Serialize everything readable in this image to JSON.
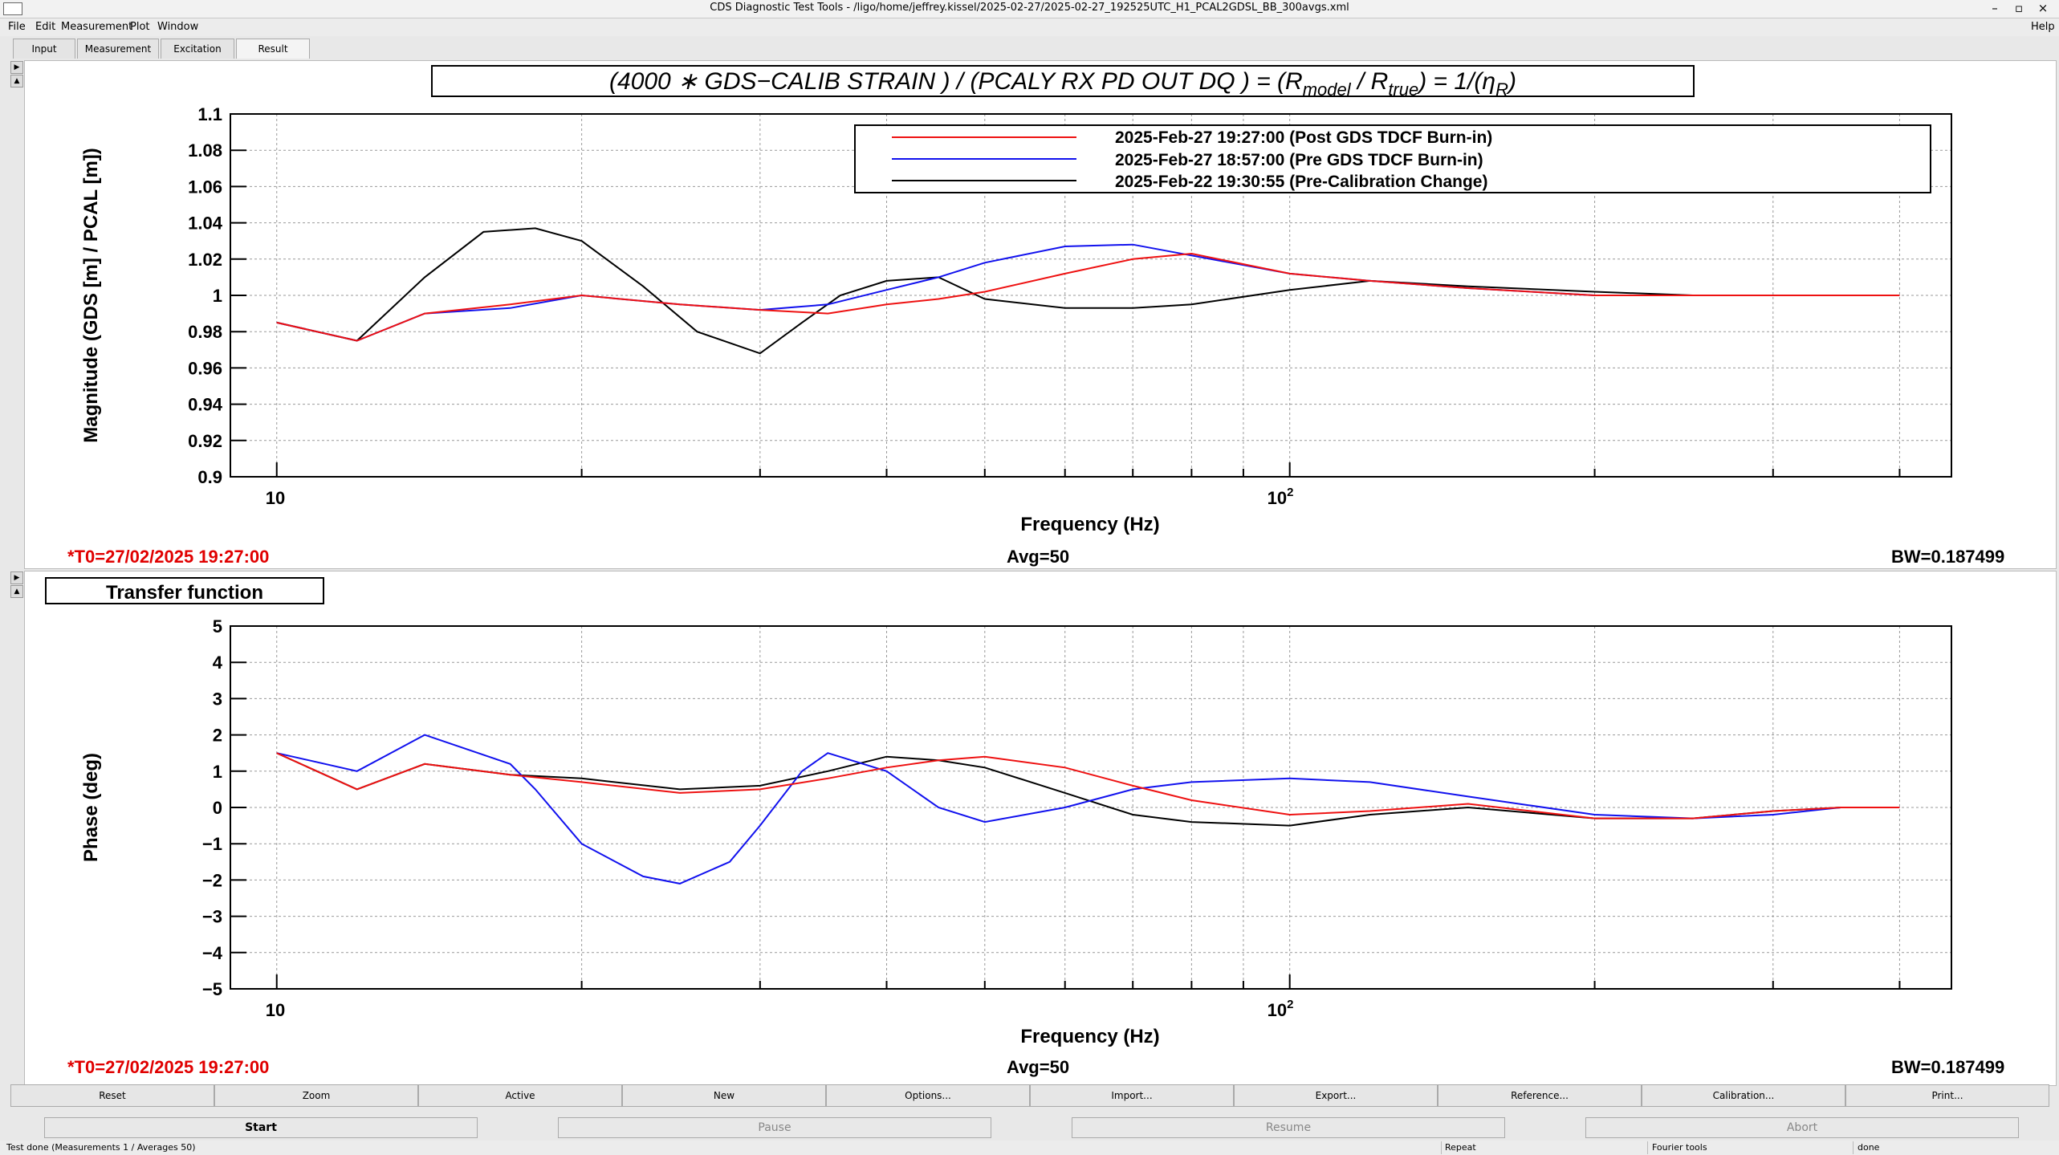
{
  "window": {
    "title": "CDS Diagnostic Test Tools - /ligo/home/jeffrey.kissel/2025-02-27/2025-02-27_192525UTC_H1_PCAL2GDSL_BB_300avgs.xml",
    "buttons": [
      "–",
      "▫",
      "×"
    ]
  },
  "menu": {
    "items": [
      "File",
      "Edit",
      "Measurement",
      "Plot",
      "Window"
    ],
    "help": "Help"
  },
  "tabs": [
    "Input",
    "Measurement",
    "Excitation",
    "Result"
  ],
  "colors": {
    "red": "#ee1111",
    "blue": "#1111ee",
    "black": "#000000"
  },
  "top_plot": {
    "title_plain": "(4000 ∗ GDS−CALIB   STRAIN   )   /   (PCALY   RX   PD   OUT   DQ   ) = (R",
    "title_sub1": "model",
    "title_mid": "   /   R",
    "title_sub2": "true",
    "title_end": ") = 1/(η",
    "title_sub3": "R",
    "title_close": ")",
    "ylabel": "Magnitude (GDS [m] / PCAL [m])",
    "xlabel": "Frequency (Hz)",
    "xtick_10": "10",
    "xtick_100_base": "10",
    "xtick_100_exp": "2",
    "legend": [
      {
        "label": "2025-Feb-27 19:27:00 (Post GDS TDCF Burn-in)",
        "color": "#ee1111"
      },
      {
        "label": "2025-Feb-27 18:57:00 (Pre GDS TDCF Burn-in)",
        "color": "#1111ee"
      },
      {
        "label": "2025-Feb-22 19:30:55 (Pre-Calibration Change)",
        "color": "#000000"
      }
    ],
    "t0": "*T0=27/02/2025 19:27:00",
    "avg": "Avg=50",
    "bw": "BW=0.187499"
  },
  "bottom_plot": {
    "label": "Transfer function",
    "ylabel": "Phase (deg)",
    "xlabel": "Frequency (Hz)",
    "xtick_10": "10",
    "xtick_100_base": "10",
    "xtick_100_exp": "2",
    "t0": "*T0=27/02/2025 19:27:00",
    "avg": "Avg=50",
    "bw": "BW=0.187499"
  },
  "chart_data": [
    {
      "type": "line",
      "title": "(4000 ∗ GDS−CALIB STRAIN) / (PCALY RX PD OUT DQ) = (R_model / R_true) = 1/(η_R)",
      "xlabel": "Frequency (Hz)",
      "ylabel": "Magnitude (GDS [m] / PCAL [m])",
      "xscale": "log",
      "xlim": [
        9,
        450
      ],
      "ylim": [
        0.9,
        1.1
      ],
      "yticks": [
        "0.9",
        "0.92",
        "0.94",
        "0.96",
        "0.98",
        "1",
        "1.02",
        "1.04",
        "1.06",
        "1.08",
        "1.1"
      ],
      "grid": true,
      "legend_position": "top-right",
      "series": [
        {
          "name": "2025-Feb-27 19:27:00 (Post GDS TDCF Burn-in)",
          "color": "#ee1111",
          "x": [
            10,
            12,
            14,
            17,
            20,
            25,
            30,
            35,
            40,
            45,
            50,
            60,
            70,
            80,
            100,
            120,
            150,
            200,
            250,
            300,
            350,
            400
          ],
          "y": [
            0.985,
            0.975,
            0.99,
            0.995,
            1.0,
            0.995,
            0.992,
            0.99,
            0.995,
            0.998,
            1.002,
            1.012,
            1.02,
            1.023,
            1.012,
            1.008,
            1.004,
            1.0,
            1.0,
            1.0,
            1.0,
            1.0
          ]
        },
        {
          "name": "2025-Feb-27 18:57:00 (Pre GDS TDCF Burn-in)",
          "color": "#1111ee",
          "x": [
            10,
            12,
            14,
            17,
            20,
            25,
            30,
            35,
            40,
            45,
            50,
            60,
            70,
            80,
            100,
            120,
            150,
            200,
            250,
            300,
            350,
            400
          ],
          "y": [
            0.985,
            0.975,
            0.99,
            0.993,
            1.0,
            0.995,
            0.992,
            0.995,
            1.003,
            1.01,
            1.018,
            1.027,
            1.028,
            1.022,
            1.012,
            1.008,
            1.004,
            1.0,
            1.0,
            1.0,
            1.0,
            1.0
          ]
        },
        {
          "name": "2025-Feb-22 19:30:55 (Pre-Calibration Change)",
          "color": "#000000",
          "x": [
            10,
            12,
            14,
            16,
            18,
            20,
            23,
            26,
            30,
            33,
            36,
            40,
            45,
            50,
            60,
            70,
            80,
            100,
            120,
            150,
            200,
            250,
            300,
            350,
            400
          ],
          "y": [
            0.985,
            0.975,
            1.01,
            1.035,
            1.037,
            1.03,
            1.005,
            0.98,
            0.968,
            0.985,
            1.0,
            1.008,
            1.01,
            0.998,
            0.993,
            0.993,
            0.995,
            1.003,
            1.008,
            1.005,
            1.002,
            1.0,
            1.0,
            1.0,
            1.0
          ]
        }
      ]
    },
    {
      "type": "line",
      "title": "Transfer function",
      "xlabel": "Frequency (Hz)",
      "ylabel": "Phase (deg)",
      "xscale": "log",
      "xlim": [
        9,
        450
      ],
      "ylim": [
        -5,
        5
      ],
      "yticks": [
        "−5",
        "−4",
        "−3",
        "−2",
        "−1",
        "0",
        "1",
        "2",
        "3",
        "4",
        "5"
      ],
      "grid": true,
      "series": [
        {
          "name": "2025-Feb-27 19:27:00 (Post GDS TDCF Burn-in)",
          "color": "#ee1111",
          "x": [
            10,
            12,
            14,
            17,
            20,
            25,
            30,
            35,
            40,
            45,
            50,
            60,
            70,
            80,
            100,
            120,
            150,
            200,
            250,
            300,
            350,
            400
          ],
          "y": [
            1.5,
            0.5,
            1.2,
            0.9,
            0.7,
            0.4,
            0.5,
            0.8,
            1.1,
            1.3,
            1.4,
            1.1,
            0.6,
            0.2,
            -0.2,
            -0.1,
            0.1,
            -0.3,
            -0.3,
            -0.1,
            0.0,
            0.0
          ]
        },
        {
          "name": "2025-Feb-27 18:57:00 (Pre GDS TDCF Burn-in)",
          "color": "#1111ee",
          "x": [
            10,
            12,
            14,
            17,
            18,
            20,
            23,
            25,
            28,
            30,
            33,
            35,
            40,
            45,
            50,
            60,
            70,
            80,
            100,
            120,
            150,
            200,
            250,
            300,
            350,
            400
          ],
          "y": [
            1.5,
            1.0,
            2.0,
            1.2,
            0.5,
            -1.0,
            -1.9,
            -2.1,
            -1.5,
            -0.5,
            1.0,
            1.5,
            1.0,
            0.0,
            -0.4,
            0.0,
            0.5,
            0.7,
            0.8,
            0.7,
            0.3,
            -0.2,
            -0.3,
            -0.2,
            0.0,
            0.0
          ]
        },
        {
          "name": "2025-Feb-22 19:30:55 (Pre-Calibration Change)",
          "color": "#000000",
          "x": [
            10,
            12,
            14,
            17,
            20,
            25,
            30,
            35,
            40,
            45,
            50,
            60,
            70,
            80,
            100,
            120,
            150,
            200,
            250,
            300,
            350,
            400
          ],
          "y": [
            1.5,
            0.5,
            1.2,
            0.9,
            0.8,
            0.5,
            0.6,
            1.0,
            1.4,
            1.3,
            1.1,
            0.4,
            -0.2,
            -0.4,
            -0.5,
            -0.2,
            0.0,
            -0.3,
            -0.3,
            -0.1,
            0.0,
            0.0
          ]
        }
      ]
    }
  ],
  "buttons": [
    "Reset",
    "Zoom",
    "Active",
    "New",
    "Options...",
    "Import...",
    "Export...",
    "Reference...",
    "Calibration...",
    "Print..."
  ],
  "controls": [
    "Start",
    "Pause",
    "Resume",
    "Abort"
  ],
  "status": {
    "text": "Test done (Measurements 1 / Averages 50)",
    "repeat": "Repeat",
    "fourier": "Fourier tools",
    "done": "done"
  }
}
